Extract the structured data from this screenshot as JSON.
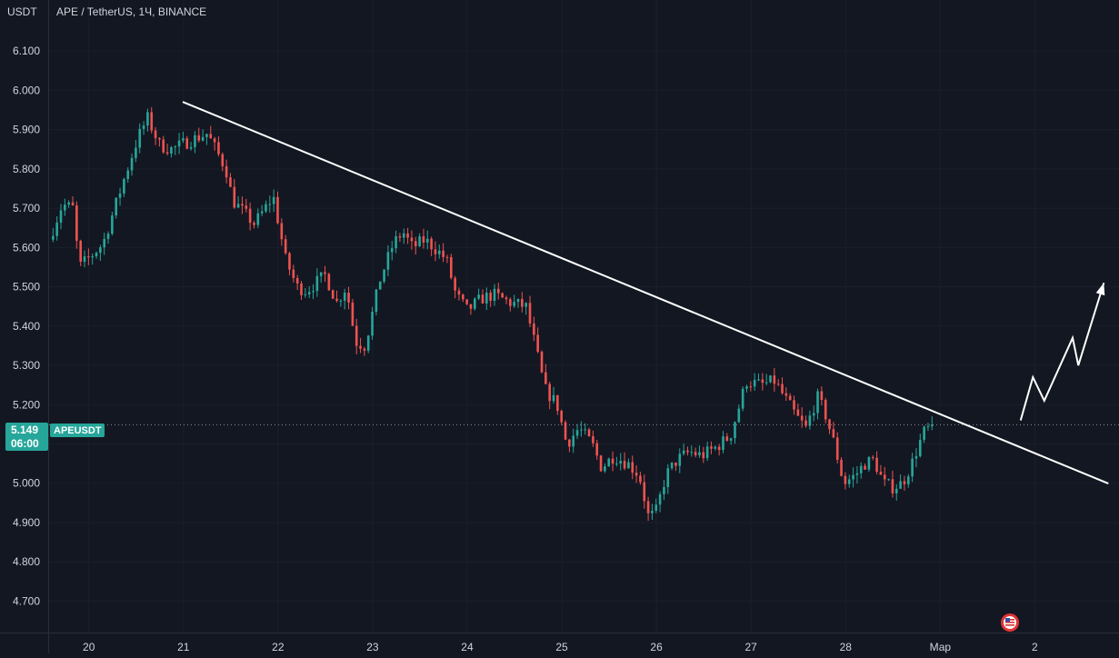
{
  "header": {
    "currency": "USDT",
    "symbol_title": "APE / TetherUS, 1Ч, BINANCE"
  },
  "price_tag": {
    "price": "5.149",
    "countdown": "06:00",
    "symbol": "APEUSDT"
  },
  "colors": {
    "background": "#131722",
    "up": "#26a69a",
    "down": "#ef5350",
    "axis_text": "#d1d4dc",
    "annotation": "#ffffff",
    "price_tag": "#26a69a"
  },
  "chart_data": {
    "type": "candlestick",
    "title": "APE / TetherUS, 1Ч, BINANCE",
    "ylabel": "USDT",
    "ylim": [
      4.62,
      6.23
    ],
    "y_ticks": [
      "6.100",
      "6.000",
      "5.900",
      "5.800",
      "5.700",
      "5.600",
      "5.500",
      "5.400",
      "5.300",
      "5.200",
      "5.100",
      "5.000",
      "4.900",
      "4.800",
      "4.700"
    ],
    "y_tick_values": [
      6.1,
      6.0,
      5.9,
      5.8,
      5.7,
      5.6,
      5.5,
      5.4,
      5.3,
      5.2,
      5.1,
      5.0,
      4.9,
      4.8,
      4.7
    ],
    "x_ticks": [
      "20",
      "21",
      "22",
      "23",
      "24",
      "25",
      "26",
      "27",
      "28",
      "Мар",
      "2"
    ],
    "x_tick_days": [
      20,
      21,
      22,
      23,
      24,
      25,
      26,
      27,
      28,
      29,
      30
    ],
    "x_range_days": [
      19.58,
      30.89
    ],
    "candle_interval_hours": 1,
    "last_price": 5.149,
    "trendline": {
      "start": {
        "day": 21.0,
        "price": 5.97
      },
      "end": {
        "day": 30.77,
        "price": 5.0
      }
    },
    "projection_arrow": [
      {
        "day": 29.85,
        "price": 5.16
      },
      {
        "day": 29.98,
        "price": 5.27
      },
      {
        "day": 30.1,
        "price": 5.21
      },
      {
        "day": 30.4,
        "price": 5.37
      },
      {
        "day": 30.46,
        "price": 5.3
      },
      {
        "day": 30.73,
        "price": 5.51
      }
    ],
    "price_path": [
      {
        "day": 19.58,
        "price": 5.62
      },
      {
        "day": 19.72,
        "price": 5.71
      },
      {
        "day": 19.83,
        "price": 5.7
      },
      {
        "day": 19.9,
        "price": 5.55
      },
      {
        "day": 20.03,
        "price": 5.58
      },
      {
        "day": 20.15,
        "price": 5.61
      },
      {
        "day": 20.38,
        "price": 5.78
      },
      {
        "day": 20.52,
        "price": 5.88
      },
      {
        "day": 20.62,
        "price": 5.93
      },
      {
        "day": 20.75,
        "price": 5.86
      },
      {
        "day": 20.88,
        "price": 5.85
      },
      {
        "day": 21.05,
        "price": 5.87
      },
      {
        "day": 21.25,
        "price": 5.89
      },
      {
        "day": 21.45,
        "price": 5.8
      },
      {
        "day": 21.52,
        "price": 5.72
      },
      {
        "day": 21.75,
        "price": 5.66
      },
      {
        "day": 21.95,
        "price": 5.73
      },
      {
        "day": 22.08,
        "price": 5.57
      },
      {
        "day": 22.2,
        "price": 5.5
      },
      {
        "day": 22.3,
        "price": 5.49
      },
      {
        "day": 22.5,
        "price": 5.53
      },
      {
        "day": 22.62,
        "price": 5.46
      },
      {
        "day": 22.72,
        "price": 5.5
      },
      {
        "day": 22.82,
        "price": 5.36
      },
      {
        "day": 22.92,
        "price": 5.35
      },
      {
        "day": 23.08,
        "price": 5.52
      },
      {
        "day": 23.22,
        "price": 5.61
      },
      {
        "day": 23.32,
        "price": 5.64
      },
      {
        "day": 23.42,
        "price": 5.6
      },
      {
        "day": 23.55,
        "price": 5.62
      },
      {
        "day": 23.65,
        "price": 5.6
      },
      {
        "day": 23.78,
        "price": 5.57
      },
      {
        "day": 23.88,
        "price": 5.48
      },
      {
        "day": 24.0,
        "price": 5.44
      },
      {
        "day": 24.15,
        "price": 5.47
      },
      {
        "day": 24.28,
        "price": 5.48
      },
      {
        "day": 24.45,
        "price": 5.46
      },
      {
        "day": 24.62,
        "price": 5.45
      },
      {
        "day": 24.72,
        "price": 5.35
      },
      {
        "day": 24.82,
        "price": 5.24
      },
      {
        "day": 24.95,
        "price": 5.2
      },
      {
        "day": 25.05,
        "price": 5.1
      },
      {
        "day": 25.18,
        "price": 5.14
      },
      {
        "day": 25.32,
        "price": 5.1
      },
      {
        "day": 25.42,
        "price": 5.04
      },
      {
        "day": 25.55,
        "price": 5.07
      },
      {
        "day": 25.7,
        "price": 5.05
      },
      {
        "day": 25.82,
        "price": 5.02
      },
      {
        "day": 25.92,
        "price": 4.91
      },
      {
        "day": 26.0,
        "price": 4.93
      },
      {
        "day": 26.1,
        "price": 5.02
      },
      {
        "day": 26.22,
        "price": 5.06
      },
      {
        "day": 26.35,
        "price": 5.08
      },
      {
        "day": 26.48,
        "price": 5.07
      },
      {
        "day": 26.62,
        "price": 5.09
      },
      {
        "day": 26.78,
        "price": 5.12
      },
      {
        "day": 26.88,
        "price": 5.2
      },
      {
        "day": 26.95,
        "price": 5.26
      },
      {
        "day": 27.1,
        "price": 5.25
      },
      {
        "day": 27.25,
        "price": 5.26
      },
      {
        "day": 27.35,
        "price": 5.22
      },
      {
        "day": 27.48,
        "price": 5.17
      },
      {
        "day": 27.58,
        "price": 5.14
      },
      {
        "day": 27.7,
        "price": 5.22
      },
      {
        "day": 27.78,
        "price": 5.18
      },
      {
        "day": 27.88,
        "price": 5.1
      },
      {
        "day": 27.98,
        "price": 5.0
      },
      {
        "day": 28.1,
        "price": 5.02
      },
      {
        "day": 28.2,
        "price": 5.05
      },
      {
        "day": 28.3,
        "price": 5.06
      },
      {
        "day": 28.4,
        "price": 5.0
      },
      {
        "day": 28.5,
        "price": 4.99
      },
      {
        "day": 28.6,
        "price": 5.0
      },
      {
        "day": 28.7,
        "price": 5.05
      },
      {
        "day": 28.76,
        "price": 5.09
      },
      {
        "day": 28.83,
        "price": 5.13
      },
      {
        "day": 28.88,
        "price": 5.14
      },
      {
        "day": 28.91,
        "price": 5.149
      }
    ]
  }
}
